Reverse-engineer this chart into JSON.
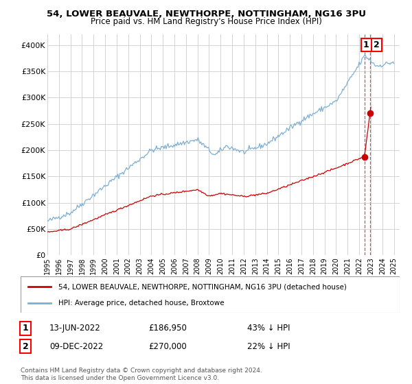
{
  "title1": "54, LOWER BEAUVALE, NEWTHORPE, NOTTINGHAM, NG16 3PU",
  "title2": "Price paid vs. HM Land Registry's House Price Index (HPI)",
  "xlim_start": 1995.0,
  "xlim_end": 2025.5,
  "ylim": [
    0,
    420000
  ],
  "yticks": [
    0,
    50000,
    100000,
    150000,
    200000,
    250000,
    300000,
    350000,
    400000
  ],
  "ytick_labels": [
    "£0",
    "£50K",
    "£100K",
    "£150K",
    "£200K",
    "£250K",
    "£300K",
    "£350K",
    "£400K"
  ],
  "hpi_color": "#7bafd4",
  "house_color": "#cc0000",
  "legend_house": "54, LOWER BEAUVALE, NEWTHORPE, NOTTINGHAM, NG16 3PU (detached house)",
  "legend_hpi": "HPI: Average price, detached house, Broxtowe",
  "annotation1_label": "1",
  "annotation1_date": "13-JUN-2022",
  "annotation1_price": "£186,950",
  "annotation1_hpi": "43% ↓ HPI",
  "annotation2_label": "2",
  "annotation2_date": "09-DEC-2022",
  "annotation2_price": "£270,000",
  "annotation2_hpi": "22% ↓ HPI",
  "footnote": "Contains HM Land Registry data © Crown copyright and database right 2024.\nThis data is licensed under the Open Government Licence v3.0.",
  "sale1_x": 2022.45,
  "sale1_y": 186950,
  "sale2_x": 2022.93,
  "sale2_y": 270000,
  "background_color": "#ffffff",
  "grid_color": "#cccccc"
}
